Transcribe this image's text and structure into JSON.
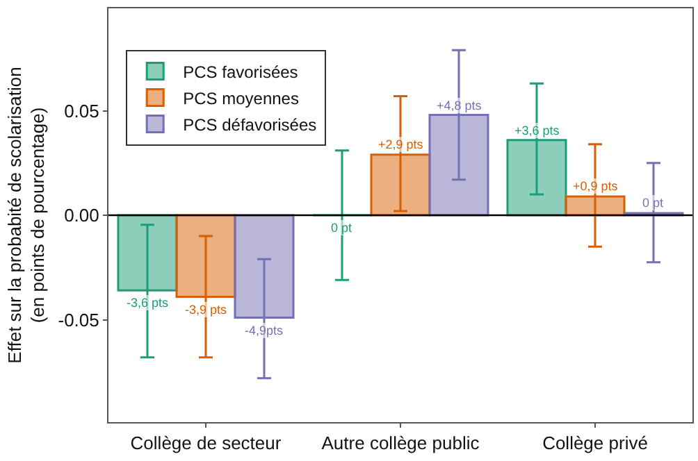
{
  "chart_data": {
    "type": "bar",
    "ylabel": "Effet sur la probabité de scolarisation\n(en points de pourcentage)",
    "categories": [
      "Collège de secteur",
      "Autre collège public",
      "Collège privé"
    ],
    "series": [
      {
        "name": "PCS favorisées",
        "color": "#1b9e77",
        "values": [
          -0.036,
          0,
          0.036
        ],
        "errors": [
          [
            -0.068,
            -0.0046
          ],
          [
            -0.031,
            0.031
          ],
          [
            0.01,
            0.063
          ]
        ]
      },
      {
        "name": "PCS moyennes",
        "color": "#d95f02",
        "values": [
          -0.039,
          0.029,
          0.009
        ],
        "errors": [
          [
            -0.068,
            -0.01
          ],
          [
            0.002,
            0.057
          ],
          [
            -0.015,
            0.034
          ]
        ]
      },
      {
        "name": "PCS défavorisées",
        "color": "#7570b3",
        "values": [
          -0.049,
          0.048,
          0.001
        ],
        "errors": [
          [
            -0.078,
            -0.021
          ],
          [
            0.017,
            0.079
          ],
          [
            -0.0225,
            0.025
          ]
        ]
      }
    ],
    "annotations": [
      {
        "text": "-3,6 pts",
        "y": -0.036
      },
      {
        "text": "0 pt",
        "y": 0
      },
      {
        "text": "+3,6 pts",
        "y": 0.036
      },
      {
        "text": "-3,9 pts",
        "y": -0.039
      },
      {
        "text": "+2,9 pts",
        "y": 0.029
      },
      {
        "text": "+0,9 pts",
        "y": 0.009
      },
      {
        "text": "-4,9pts",
        "y": -0.049
      },
      {
        "text": "+4,8 pts",
        "y": 0.048
      },
      {
        "text": "0 pt",
        "y": 0.001
      }
    ],
    "ylim": [
      -0.099,
      0.099
    ],
    "yticks": [
      0.05,
      {
        "value": 0,
        "label": "0.00"
      },
      -0.05
    ],
    "ref_lines": [
      {
        "axis": "y",
        "value": 0,
        "color": "#000000"
      }
    ],
    "grid": false,
    "legend": "top left"
  }
}
